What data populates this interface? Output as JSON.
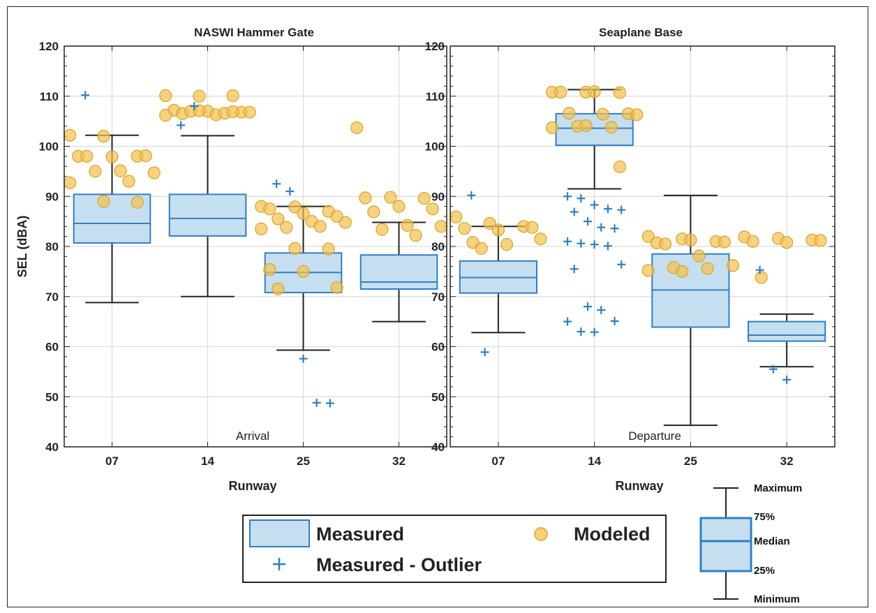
{
  "chart_data": {
    "type": "box",
    "ylabel": "SEL (dBA)",
    "xlabel": "Runway",
    "ylim": [
      40,
      120
    ],
    "yticks": [
      40,
      50,
      60,
      70,
      80,
      90,
      100,
      110,
      120
    ],
    "categories": [
      "07",
      "14",
      "25",
      "32"
    ],
    "grid": true,
    "colors": {
      "box_fill": "#c6dff0",
      "box_edge": "#2f7fc1",
      "outlier": "#2f7fc1",
      "modeled": "#f2c14e",
      "modeled_edge": "#d9a226",
      "whisker": "#222222"
    },
    "panels": [
      {
        "title": "NASWI Hammer Gate",
        "annotation": "Arrival",
        "measured": [
          {
            "category": "07",
            "min": 68.8,
            "q1": 80.7,
            "median": 84.6,
            "q3": 90.4,
            "max": 102.2,
            "outliers": [
              110.2
            ]
          },
          {
            "category": "14",
            "min": 70.0,
            "q1": 82.1,
            "median": 85.6,
            "q3": 90.4,
            "max": 102.1,
            "outliers": [
              104.2,
              108.0
            ]
          },
          {
            "category": "25",
            "min": 59.3,
            "q1": 70.8,
            "median": 74.8,
            "q3": 78.7,
            "max": 88.0,
            "outliers": [
              92.5,
              91.0,
              57.6,
              48.8,
              48.7
            ]
          },
          {
            "category": "32",
            "min": 65.0,
            "q1": 71.5,
            "median": 72.9,
            "q3": 78.3,
            "max": 84.8,
            "outliers": []
          }
        ],
        "modeled": [
          {
            "category": "07",
            "values": [
              102.2,
              102.0,
              98.0,
              98.0,
              97.9,
              98.1,
              98.0,
              95.1,
              94.7,
              95.0,
              93.0,
              92.7,
              89.0,
              88.8
            ]
          },
          {
            "category": "14",
            "values": [
              110.1,
              110.0,
              110.1,
              107.2,
              107.0,
              106.8,
              106.5,
              106.3,
              106.8,
              107.0,
              106.6,
              106.2,
              107.1,
              106.9
            ]
          },
          {
            "category": "25",
            "values": [
              88.0,
              87.9,
              87.0,
              87.5,
              86.6,
              86.0,
              85.5,
              85.0,
              84.8,
              83.8,
              84.0,
              83.5,
              79.6,
              79.5,
              75.4,
              75.0,
              71.8,
              71.5
            ]
          },
          {
            "category": "32",
            "values": [
              103.7,
              89.8,
              89.6,
              89.7,
              88.0,
              87.5,
              86.9,
              84.2,
              84.0,
              83.4,
              82.2
            ]
          }
        ]
      },
      {
        "title": "Seaplane Base",
        "annotation": "Departure",
        "measured": [
          {
            "category": "07",
            "min": 62.8,
            "q1": 70.7,
            "median": 73.8,
            "q3": 77.1,
            "max": 84.0,
            "outliers": [
              90.2,
              58.9
            ]
          },
          {
            "category": "14",
            "min": 91.5,
            "q1": 100.2,
            "median": 103.6,
            "q3": 106.5,
            "max": 111.3,
            "outliers": [
              90.0,
              89.6,
              88.3,
              87.5,
              87.3,
              86.9,
              85.0,
              83.8,
              83.6,
              81.0,
              80.6,
              80.4,
              80.1,
              76.4,
              75.5,
              68.0,
              67.3,
              65.1,
              65.0,
              63.0,
              62.9
            ]
          },
          {
            "category": "25",
            "min": 44.3,
            "q1": 63.9,
            "median": 71.3,
            "q3": 78.5,
            "max": 90.2,
            "outliers": []
          },
          {
            "category": "32",
            "min": 56.0,
            "q1": 61.1,
            "median": 62.3,
            "q3": 65.0,
            "max": 66.5,
            "outliers": [
              75.3,
              55.5,
              53.4
            ]
          }
        ],
        "modeled": [
          {
            "category": "07",
            "values": [
              85.9,
              84.6,
              84.0,
              83.6,
              83.3,
              83.8,
              80.8,
              80.4,
              81.5,
              79.6
            ]
          },
          {
            "category": "14",
            "values": [
              110.8,
              110.8,
              110.7,
              110.8,
              110.9,
              106.5,
              106.6,
              106.4,
              106.3,
              104.0,
              103.8,
              103.7,
              104.1,
              95.9
            ]
          },
          {
            "category": "25",
            "values": [
              82.0,
              81.5,
              81.0,
              80.7,
              81.3,
              80.9,
              80.5,
              78.1,
              76.2,
              75.8,
              75.6,
              75.2,
              75.0
            ]
          },
          {
            "category": "32",
            "values": [
              81.9,
              81.6,
              81.3,
              81.0,
              80.8,
              81.2,
              73.8
            ]
          }
        ]
      }
    ],
    "legend": {
      "measured": "Measured",
      "modeled": "Modeled",
      "outlier": "Measured - Outlier"
    },
    "key": {
      "maximum": "Maximum",
      "q3": "75%",
      "median": "Median",
      "q1": "25%",
      "minimum": "Minimum"
    }
  }
}
